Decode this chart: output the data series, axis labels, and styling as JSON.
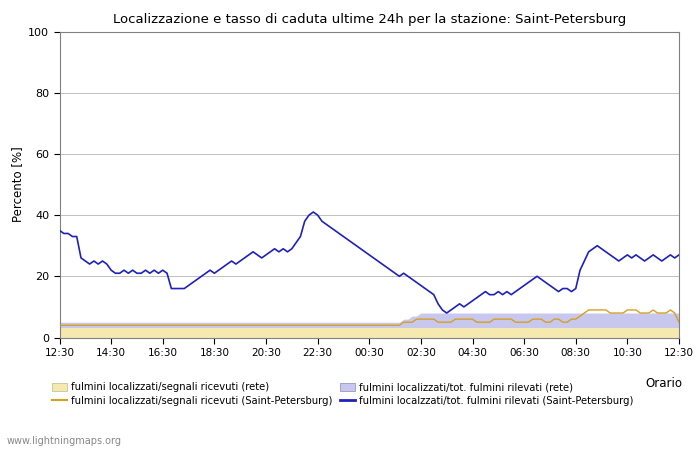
{
  "title": "Localizzazione e tasso di caduta ultime 24h per la stazione: Saint-Petersburg",
  "xlabel": "Orario",
  "ylabel": "Percento [%]",
  "ylim": [
    0,
    100
  ],
  "watermark": "www.lightningmaps.org",
  "x_labels": [
    "12:30",
    "14:30",
    "16:30",
    "18:30",
    "20:30",
    "22:30",
    "00:30",
    "02:30",
    "04:30",
    "06:30",
    "08:30",
    "10:30",
    "12:30"
  ],
  "color_rete_signal": "#f5e9b0",
  "color_rete_total": "#c8c8ee",
  "color_spb_signal": "#d4a020",
  "color_spb_total": "#2020bb",
  "rete_signal": [
    3,
    3,
    3,
    3,
    3,
    3,
    3,
    3,
    3,
    3,
    3,
    3,
    3,
    3,
    3,
    3,
    3,
    3,
    3,
    3,
    3,
    3,
    3,
    3,
    3,
    3,
    3,
    3,
    3,
    3,
    3,
    3,
    3,
    3,
    3,
    3,
    3,
    3,
    3,
    3,
    3,
    3,
    3,
    3,
    3,
    3,
    3,
    3,
    3,
    3,
    3,
    3,
    3,
    3,
    3,
    3,
    3,
    3,
    3,
    3,
    3,
    3,
    3,
    3,
    3,
    3,
    3,
    3,
    3,
    3,
    3,
    3,
    3,
    3,
    3,
    3,
    3,
    3,
    3,
    3,
    3,
    3,
    3,
    3,
    3,
    3,
    3,
    3,
    3,
    3,
    3,
    3,
    3,
    3,
    3,
    3,
    3,
    3,
    3,
    3,
    3,
    3,
    3,
    3,
    3,
    3,
    3,
    3,
    3,
    3,
    3,
    3,
    3,
    3,
    3,
    3,
    3,
    3,
    3,
    3,
    3,
    3,
    3,
    3,
    3,
    3,
    3,
    3,
    3,
    3,
    3,
    3,
    3,
    3,
    3,
    3,
    3,
    3,
    3,
    3,
    3,
    3,
    3,
    3,
    3
  ],
  "rete_total": [
    5,
    5,
    5,
    5,
    5,
    5,
    5,
    5,
    5,
    5,
    5,
    5,
    5,
    5,
    5,
    5,
    5,
    5,
    5,
    5,
    5,
    5,
    5,
    5,
    5,
    5,
    5,
    5,
    5,
    5,
    5,
    5,
    5,
    5,
    5,
    5,
    5,
    5,
    5,
    5,
    5,
    5,
    5,
    5,
    5,
    5,
    5,
    5,
    5,
    5,
    5,
    5,
    5,
    5,
    5,
    5,
    5,
    5,
    5,
    5,
    5,
    5,
    5,
    5,
    5,
    5,
    5,
    5,
    5,
    5,
    5,
    5,
    5,
    5,
    5,
    5,
    5,
    5,
    5,
    5,
    6,
    6,
    7,
    7,
    8,
    8,
    8,
    8,
    8,
    8,
    8,
    8,
    8,
    8,
    8,
    8,
    8,
    8,
    8,
    8,
    8,
    8,
    8,
    8,
    8,
    8,
    8,
    8,
    8,
    8,
    8,
    8,
    8,
    8,
    8,
    8,
    8,
    8,
    8,
    8,
    8,
    8,
    8,
    8,
    8,
    8,
    8,
    8,
    8,
    8,
    8,
    8,
    8,
    8,
    8,
    8,
    8,
    8,
    8,
    8,
    8,
    8,
    8,
    8,
    8
  ],
  "spb_signal": [
    4,
    4,
    4,
    4,
    4,
    4,
    4,
    4,
    4,
    4,
    4,
    4,
    4,
    4,
    4,
    4,
    4,
    4,
    4,
    4,
    4,
    4,
    4,
    4,
    4,
    4,
    4,
    4,
    4,
    4,
    4,
    4,
    4,
    4,
    4,
    4,
    4,
    4,
    4,
    4,
    4,
    4,
    4,
    4,
    4,
    4,
    4,
    4,
    4,
    4,
    4,
    4,
    4,
    4,
    4,
    4,
    4,
    4,
    4,
    4,
    4,
    4,
    4,
    4,
    4,
    4,
    4,
    4,
    4,
    4,
    4,
    4,
    4,
    4,
    4,
    4,
    4,
    4,
    4,
    4,
    5,
    5,
    5,
    6,
    6,
    6,
    6,
    6,
    5,
    5,
    5,
    5,
    6,
    6,
    6,
    6,
    6,
    5,
    5,
    5,
    5,
    6,
    6,
    6,
    6,
    6,
    5,
    5,
    5,
    5,
    6,
    6,
    6,
    5,
    5,
    6,
    6,
    5,
    5,
    6,
    6,
    7,
    8,
    9,
    9,
    9,
    9,
    9,
    8,
    8,
    8,
    8,
    9,
    9,
    9,
    8,
    8,
    8,
    9,
    8,
    8,
    8,
    9,
    8,
    5
  ],
  "spb_total": [
    35,
    34,
    34,
    33,
    33,
    26,
    25,
    24,
    25,
    24,
    25,
    24,
    22,
    21,
    21,
    22,
    21,
    22,
    21,
    21,
    22,
    21,
    22,
    21,
    22,
    21,
    16,
    16,
    16,
    16,
    17,
    18,
    19,
    20,
    21,
    22,
    21,
    22,
    23,
    24,
    25,
    24,
    25,
    26,
    27,
    28,
    27,
    26,
    27,
    28,
    29,
    28,
    29,
    28,
    29,
    31,
    33,
    38,
    40,
    41,
    40,
    38,
    37,
    36,
    35,
    34,
    33,
    32,
    31,
    30,
    29,
    28,
    27,
    26,
    25,
    24,
    23,
    22,
    21,
    20,
    21,
    20,
    19,
    18,
    17,
    16,
    15,
    14,
    11,
    9,
    8,
    9,
    10,
    11,
    10,
    11,
    12,
    13,
    14,
    15,
    14,
    14,
    15,
    14,
    15,
    14,
    15,
    16,
    17,
    18,
    19,
    20,
    19,
    18,
    17,
    16,
    15,
    16,
    16,
    15,
    16,
    22,
    25,
    28,
    29,
    30,
    29,
    28,
    27,
    26,
    25,
    26,
    27,
    26,
    27,
    26,
    25,
    26,
    27,
    26,
    25,
    26,
    27,
    26,
    27
  ]
}
